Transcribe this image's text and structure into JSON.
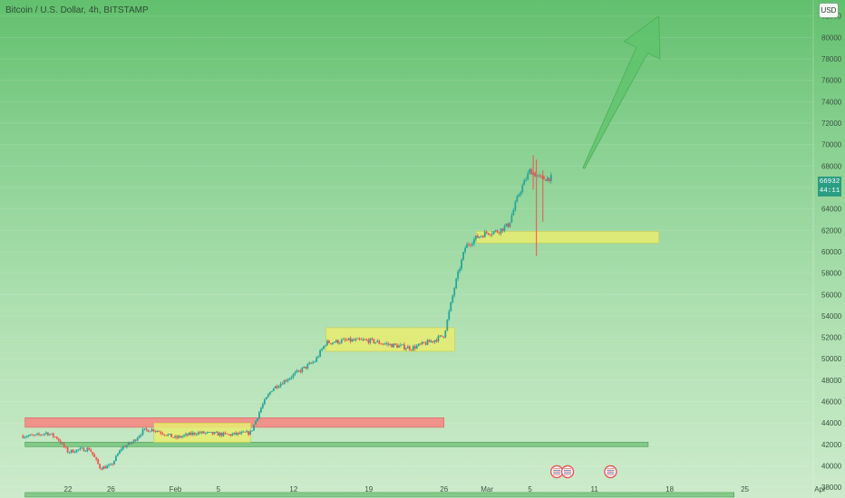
{
  "header": {
    "title": "Bitcoin / U.S. Dollar, 4h, BITSTAMP",
    "currency_button": "USD"
  },
  "last_price": {
    "value": "66932",
    "countdown": "44:11"
  },
  "colors": {
    "up_candle": "#26a69a",
    "down_candle": "#ef5350",
    "support_zone": "#e8ec70",
    "resistance_zone": "#f28b86",
    "green_line": "#6bbf73",
    "arrow": "#5fc36c",
    "price_label_bg": "#2a9e82"
  },
  "chart_data": {
    "type": "candlestick",
    "y_axis": {
      "range": [
        37000,
        83500
      ],
      "tick_labels": [
        "38000",
        "40000",
        "42000",
        "44000",
        "46000",
        "48000",
        "50000",
        "52000",
        "54000",
        "56000",
        "58000",
        "60000",
        "62000",
        "64000",
        "66000",
        "68000",
        "70000",
        "72000",
        "74000",
        "76000",
        "78000",
        "80000",
        "82000"
      ]
    },
    "x_axis": {
      "tick_labels": [
        "22",
        "26",
        "Feb",
        "5",
        "12",
        "19",
        "26",
        "Mar",
        "5",
        "11",
        "18",
        "25",
        "Apr"
      ]
    },
    "anchor_closes": [
      [
        "Jan 19",
        42800
      ],
      [
        "Jan 20",
        43100
      ],
      [
        "Jan 21",
        42600
      ],
      [
        "Jan 22",
        41300
      ],
      [
        "Jan 23",
        41500
      ],
      [
        "Jan 24",
        41600
      ],
      [
        "Jan 25",
        39800
      ],
      [
        "Jan 26",
        40000
      ],
      [
        "Jan 27",
        41700
      ],
      [
        "Jan 28",
        42200
      ],
      [
        "Jan 29",
        43300
      ],
      [
        "Jan 30",
        43400
      ],
      [
        "Jan 31",
        43000
      ],
      [
        "Feb 1",
        42600
      ],
      [
        "Feb 3",
        43100
      ],
      [
        "Feb 6",
        42900
      ],
      [
        "Feb 8",
        43100
      ],
      [
        "Feb 9",
        45500
      ],
      [
        "Feb 10",
        47200
      ],
      [
        "Feb 12",
        48500
      ],
      [
        "Feb 14",
        49800
      ],
      [
        "Feb 15",
        51500
      ],
      [
        "Feb 17",
        51700
      ],
      [
        "Feb 19",
        51700
      ],
      [
        "Feb 21",
        51300
      ],
      [
        "Feb 23",
        51000
      ],
      [
        "Feb 25",
        51700
      ],
      [
        "Feb 26",
        52200
      ],
      [
        "Feb 27",
        56800
      ],
      [
        "Feb 28",
        60500
      ],
      [
        "Feb 29",
        61300
      ],
      [
        "Mar 1",
        61800
      ],
      [
        "Mar 2",
        61900
      ],
      [
        "Mar 3",
        62500
      ],
      [
        "Mar 4",
        65500
      ],
      [
        "Mar 5",
        67600
      ],
      [
        "Mar 6",
        66800
      ],
      [
        "Mar 7",
        66900
      ]
    ],
    "zones": [
      {
        "type": "resistance",
        "y_range": [
          43600,
          44500
        ],
        "x_range": [
          "Jan 18",
          "Feb 26"
        ]
      },
      {
        "type": "consolidation",
        "y_range": [
          42200,
          44000
        ],
        "x_range": [
          "Jan 30",
          "Feb 8"
        ]
      },
      {
        "type": "consolidation",
        "y_range": [
          50700,
          52900
        ],
        "x_range": [
          "Feb 15",
          "Feb 27"
        ]
      },
      {
        "type": "support",
        "y_range": [
          60800,
          61900
        ],
        "x_range": [
          "Feb 29",
          "Mar 17"
        ]
      }
    ],
    "horizontal_lines": [
      {
        "y": 42000,
        "x_range": [
          "Jan 18",
          "Mar 16"
        ]
      },
      {
        "y": 37300,
        "x_range": [
          "Jan 18",
          "Mar 24"
        ]
      }
    ],
    "arrow": {
      "from": [
        "Mar 10",
        67800
      ],
      "to": [
        "Mar 17",
        82000
      ]
    },
    "event_markers": [
      "Mar 7",
      "Mar 8",
      "Mar 12"
    ]
  }
}
